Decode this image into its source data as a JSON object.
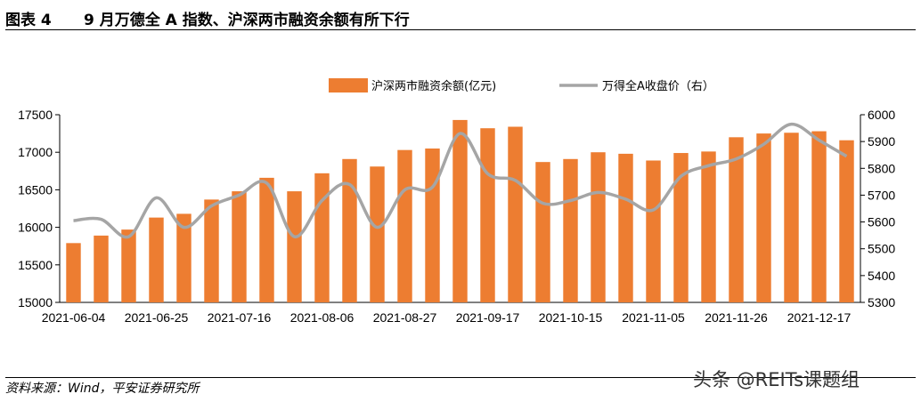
{
  "header": {
    "label": "图表 4",
    "title": "9 月万德全 A 指数、沪深两市融资余额有所下行"
  },
  "footer": {
    "source": "资料来源：Wind，平安证券研究所",
    "watermark": "头条 @REITs课题组"
  },
  "chart_data": {
    "type": "bar",
    "legend_position": "top",
    "grid": false,
    "x_tick_labels": [
      "2021-06-04",
      "2021-06-25",
      "2021-07-16",
      "2021-08-06",
      "2021-08-27",
      "2021-09-17",
      "2021-10-15",
      "2021-11-05",
      "2021-11-26",
      "2021-12-17"
    ],
    "series": [
      {
        "name": "沪深两市融资余额(亿元)",
        "type": "bar",
        "axis": "left",
        "color": "#ED7D31",
        "values": [
          15790,
          15890,
          15970,
          16130,
          16180,
          16370,
          16480,
          16660,
          16480,
          16720,
          16910,
          16810,
          17030,
          17050,
          17430,
          17320,
          17340,
          16870,
          16910,
          17000,
          16980,
          16890,
          16990,
          17010,
          17200,
          17250,
          17260,
          17280,
          17160
        ]
      },
      {
        "name": "万得全A收盘价（右）",
        "type": "line",
        "axis": "right",
        "color": "#A5A5A5",
        "values": [
          5605,
          5610,
          5545,
          5690,
          5580,
          5660,
          5700,
          5745,
          5545,
          5680,
          5740,
          5580,
          5720,
          5730,
          5930,
          5780,
          5755,
          5670,
          5680,
          5710,
          5685,
          5645,
          5770,
          5810,
          5835,
          5890,
          5965,
          5905,
          5845
        ]
      }
    ],
    "y_left": {
      "min": 15000,
      "max": 17500,
      "ticks": [
        15000,
        15500,
        16000,
        16500,
        17000,
        17500
      ]
    },
    "y_right": {
      "min": 5300,
      "max": 6000,
      "ticks": [
        5300,
        5400,
        5500,
        5600,
        5700,
        5800,
        5900,
        6000
      ]
    }
  }
}
